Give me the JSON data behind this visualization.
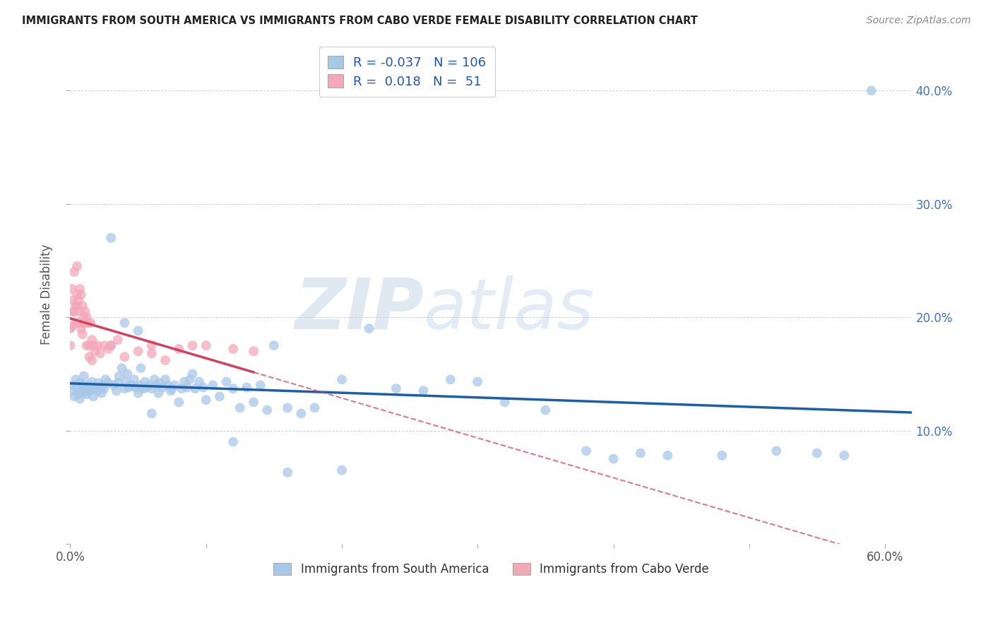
{
  "title": "IMMIGRANTS FROM SOUTH AMERICA VS IMMIGRANTS FROM CABO VERDE FEMALE DISABILITY CORRELATION CHART",
  "source": "Source: ZipAtlas.com",
  "ylabel": "Female Disability",
  "xlim": [
    0.0,
    0.62
  ],
  "ylim": [
    0.0,
    0.44
  ],
  "xtick_vals": [
    0.0,
    0.1,
    0.2,
    0.3,
    0.4,
    0.5,
    0.6
  ],
  "xtick_labels": [
    "0.0%",
    "",
    "",
    "",
    "",
    "",
    "60.0%"
  ],
  "ytick_vals": [
    0.0,
    0.1,
    0.2,
    0.3,
    0.4
  ],
  "ytick_labels": [
    "",
    "10.0%",
    "20.0%",
    "30.0%",
    "40.0%"
  ],
  "legend_label1": "Immigrants from South America",
  "legend_label2": "Immigrants from Cabo Verde",
  "R1": "-0.037",
  "N1": "106",
  "R2": "0.018",
  "N2": "51",
  "color1": "#a8c8e8",
  "color2": "#f4a7b9",
  "line_color1": "#1a5fa8",
  "line_color2": "#d44060",
  "watermark_zip": "ZIP",
  "watermark_atlas": "atlas",
  "background_color": "#ffffff",
  "scatter1_x": [
    0.001,
    0.002,
    0.003,
    0.004,
    0.005,
    0.006,
    0.007,
    0.007,
    0.008,
    0.009,
    0.01,
    0.01,
    0.011,
    0.012,
    0.013,
    0.014,
    0.015,
    0.016,
    0.017,
    0.018,
    0.02,
    0.021,
    0.022,
    0.023,
    0.024,
    0.025,
    0.026,
    0.028,
    0.03,
    0.032,
    0.034,
    0.035,
    0.036,
    0.038,
    0.04,
    0.041,
    0.042,
    0.043,
    0.045,
    0.047,
    0.048,
    0.05,
    0.051,
    0.052,
    0.054,
    0.055,
    0.056,
    0.058,
    0.06,
    0.062,
    0.063,
    0.065,
    0.066,
    0.068,
    0.07,
    0.072,
    0.074,
    0.075,
    0.077,
    0.08,
    0.082,
    0.084,
    0.086,
    0.088,
    0.09,
    0.092,
    0.095,
    0.098,
    0.1,
    0.105,
    0.11,
    0.115,
    0.12,
    0.125,
    0.13,
    0.135,
    0.14,
    0.145,
    0.15,
    0.16,
    0.17,
    0.18,
    0.2,
    0.22,
    0.24,
    0.26,
    0.28,
    0.3,
    0.32,
    0.35,
    0.38,
    0.4,
    0.42,
    0.44,
    0.48,
    0.52,
    0.55,
    0.57,
    0.59,
    0.03,
    0.04,
    0.05,
    0.06,
    0.12,
    0.16,
    0.2
  ],
  "scatter1_y": [
    0.135,
    0.14,
    0.13,
    0.145,
    0.138,
    0.132,
    0.142,
    0.128,
    0.135,
    0.14,
    0.133,
    0.148,
    0.138,
    0.132,
    0.14,
    0.135,
    0.138,
    0.143,
    0.13,
    0.137,
    0.135,
    0.142,
    0.138,
    0.133,
    0.14,
    0.137,
    0.145,
    0.142,
    0.175,
    0.14,
    0.135,
    0.142,
    0.148,
    0.155,
    0.137,
    0.143,
    0.15,
    0.138,
    0.14,
    0.145,
    0.138,
    0.133,
    0.14,
    0.155,
    0.137,
    0.143,
    0.138,
    0.14,
    0.137,
    0.145,
    0.14,
    0.133,
    0.142,
    0.138,
    0.145,
    0.14,
    0.135,
    0.137,
    0.14,
    0.125,
    0.137,
    0.143,
    0.138,
    0.145,
    0.15,
    0.137,
    0.143,
    0.138,
    0.127,
    0.14,
    0.13,
    0.143,
    0.137,
    0.12,
    0.138,
    0.125,
    0.14,
    0.118,
    0.175,
    0.12,
    0.115,
    0.12,
    0.145,
    0.19,
    0.137,
    0.135,
    0.145,
    0.143,
    0.125,
    0.118,
    0.082,
    0.075,
    0.08,
    0.078,
    0.078,
    0.082,
    0.08,
    0.078,
    0.4,
    0.27,
    0.195,
    0.188,
    0.115,
    0.09,
    0.063,
    0.065
  ],
  "scatter2_x": [
    0.0,
    0.001,
    0.002,
    0.003,
    0.004,
    0.005,
    0.005,
    0.006,
    0.007,
    0.008,
    0.009,
    0.01,
    0.01,
    0.011,
    0.012,
    0.013,
    0.014,
    0.015,
    0.016,
    0.017,
    0.018,
    0.02,
    0.022,
    0.025,
    0.028,
    0.03,
    0.035,
    0.04,
    0.05,
    0.06,
    0.07,
    0.08,
    0.09,
    0.1,
    0.12,
    0.135,
    0.0,
    0.001,
    0.002,
    0.003,
    0.004,
    0.005,
    0.006,
    0.007,
    0.008,
    0.009,
    0.01,
    0.012,
    0.014,
    0.016,
    0.06
  ],
  "scatter2_y": [
    0.19,
    0.225,
    0.215,
    0.24,
    0.21,
    0.245,
    0.22,
    0.215,
    0.225,
    0.22,
    0.21,
    0.2,
    0.195,
    0.205,
    0.2,
    0.195,
    0.175,
    0.195,
    0.18,
    0.175,
    0.17,
    0.175,
    0.168,
    0.175,
    0.172,
    0.175,
    0.18,
    0.165,
    0.17,
    0.168,
    0.162,
    0.172,
    0.175,
    0.175,
    0.172,
    0.17,
    0.175,
    0.192,
    0.205,
    0.205,
    0.195,
    0.21,
    0.195,
    0.205,
    0.19,
    0.185,
    0.195,
    0.175,
    0.165,
    0.162,
    0.175
  ]
}
